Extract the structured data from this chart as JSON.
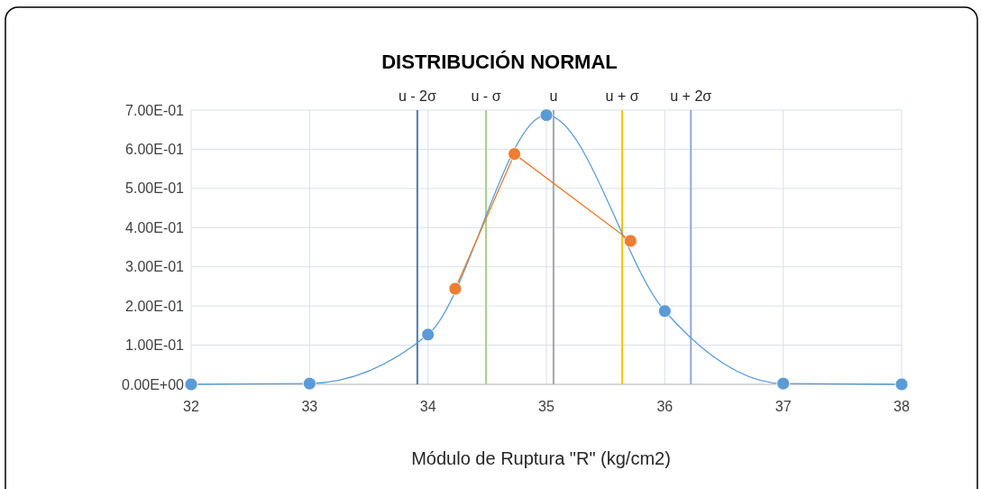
{
  "chart_data": {
    "type": "line",
    "title": "DISTRIBUCIÓN NORMAL",
    "xlabel": "Módulo de Ruptura \"R\" (kg/cm2)",
    "xlim": [
      32,
      38
    ],
    "xticks": [
      32,
      33,
      34,
      35,
      36,
      37,
      38
    ],
    "ylim": [
      0,
      0.7
    ],
    "yticks": [
      {
        "value": 0,
        "label": "0.00E+00"
      },
      {
        "value": 0.1,
        "label": "1.00E-01"
      },
      {
        "value": 0.2,
        "label": "2.00E-01"
      },
      {
        "value": 0.3,
        "label": "3.00E-01"
      },
      {
        "value": 0.4,
        "label": "4.00E-01"
      },
      {
        "value": 0.5,
        "label": "5.00E-01"
      },
      {
        "value": 0.6,
        "label": "6.00E-01"
      },
      {
        "value": 0.7,
        "label": "7.00E-01"
      }
    ],
    "grid": true,
    "marker": "circle",
    "series": [
      {
        "color": "#5b9bd5",
        "x": [
          32,
          33,
          34,
          35,
          36,
          37,
          38
        ],
        "values": [
          0,
          0.002,
          0.127,
          0.687,
          0.187,
          0.002,
          0
        ]
      },
      {
        "color": "#ed7d31",
        "x": [
          34.23,
          34.73,
          35.71
        ],
        "values": [
          0.244,
          0.588,
          0.366
        ]
      }
    ],
    "ref_lines": [
      {
        "axis": "x",
        "value": 33.91,
        "label": "u - 2σ",
        "color": "#4a7ab0"
      },
      {
        "axis": "x",
        "value": 34.49,
        "label": "u - σ",
        "color": "#a9d18e"
      },
      {
        "axis": "x",
        "value": 35.06,
        "label": "u",
        "color": "#a6a6a6"
      },
      {
        "axis": "x",
        "value": 35.64,
        "label": "u + σ",
        "color": "#ffc000"
      },
      {
        "axis": "x",
        "value": 36.22,
        "label": "u + 2σ",
        "color": "#8faadc"
      }
    ]
  }
}
